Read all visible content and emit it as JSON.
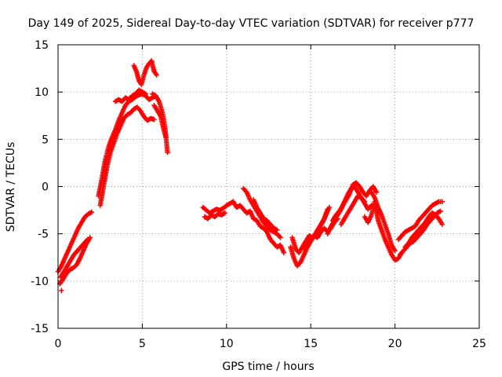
{
  "chart_data": {
    "type": "scatter",
    "title": "Day 149 of 2025, Sidereal Day-to-day VTEC variation (SDTVAR) for receiver p777",
    "xlabel": "GPS time / hours",
    "ylabel": "SDTVAR / TECUs",
    "xlim": [
      0,
      25
    ],
    "ylim": [
      -15,
      15
    ],
    "xticks": [
      "0",
      "5",
      "10",
      "15",
      "20",
      "25"
    ],
    "yticks": [
      "15",
      "10",
      "5",
      "0",
      "-5",
      "-10",
      "-15"
    ],
    "grid": true,
    "marker": "plus",
    "series_color": "#ff0000",
    "series": [
      {
        "segments": [
          {
            "x": [
              0.0,
              0.2,
              0.4,
              0.6,
              0.8,
              1.0,
              1.2,
              1.4,
              1.6,
              1.8,
              2.0
            ],
            "y": [
              -9.0,
              -8.4,
              -7.6,
              -6.8,
              -6.0,
              -5.2,
              -4.4,
              -3.8,
              -3.2,
              -2.9,
              -2.7
            ]
          },
          {
            "x": [
              0.1,
              0.3,
              0.5,
              0.7,
              0.9,
              1.1,
              1.3,
              1.5,
              1.7,
              1.9
            ],
            "y": [
              -10.3,
              -9.8,
              -9.2,
              -8.8,
              -8.6,
              -8.3,
              -7.6,
              -6.8,
              -6.0,
              -5.4
            ]
          },
          {
            "x": [
              0.15,
              0.35,
              0.55,
              0.75,
              0.95,
              1.15,
              1.35,
              1.55,
              1.75
            ],
            "y": [
              -9.6,
              -9.0,
              -8.4,
              -7.8,
              -7.2,
              -6.8,
              -6.4,
              -6.0,
              -5.6
            ]
          },
          {
            "x": [
              2.4,
              2.6,
              2.8,
              3.0,
              3.2,
              3.4,
              3.6,
              3.8,
              4.0,
              4.2,
              4.4,
              4.6,
              4.8,
              5.0,
              5.2,
              5.4,
              5.6,
              5.8
            ],
            "y": [
              -1.0,
              0.8,
              2.8,
              4.2,
              5.2,
              6.0,
              7.0,
              7.8,
              8.6,
              9.0,
              9.2,
              9.5,
              9.7,
              9.8,
              9.6,
              9.2,
              9.4,
              9.6
            ]
          },
          {
            "x": [
              2.5,
              2.7,
              2.9,
              3.1,
              3.3,
              3.5,
              3.7,
              3.9,
              4.1,
              4.3,
              4.5,
              4.7,
              4.9,
              5.1,
              5.3,
              5.5,
              5.7
            ],
            "y": [
              -2.0,
              0.0,
              2.0,
              3.6,
              4.6,
              5.6,
              6.4,
              7.2,
              7.6,
              7.8,
              8.2,
              8.4,
              8.0,
              7.4,
              7.0,
              7.2,
              7.1
            ]
          },
          {
            "x": [
              3.4,
              3.6,
              3.8,
              4.0,
              4.2,
              4.4,
              4.6,
              4.8,
              5.0,
              5.2
            ],
            "y": [
              9.0,
              9.2,
              9.0,
              9.4,
              9.2,
              9.6,
              9.8,
              10.2,
              10.0,
              9.8
            ]
          },
          {
            "x": [
              4.5,
              4.65,
              4.8,
              4.95,
              5.1,
              5.25,
              5.4,
              5.55,
              5.7,
              5.85
            ],
            "y": [
              12.8,
              12.2,
              11.2,
              10.8,
              11.8,
              12.6,
              13.0,
              13.3,
              12.2,
              11.8
            ]
          },
          {
            "x": [
              5.6,
              5.8,
              6.0,
              6.2,
              6.35,
              6.5
            ],
            "y": [
              9.8,
              9.6,
              9.0,
              7.8,
              6.2,
              3.6
            ]
          },
          {
            "x": [
              5.7,
              5.9,
              6.1,
              6.25,
              6.4
            ],
            "y": [
              8.6,
              8.0,
              7.4,
              6.2,
              5.2
            ]
          },
          {
            "x": [
              0.2
            ],
            "y": [
              -11.0
            ]
          },
          {
            "x": [
              8.6,
              8.8,
              9.0,
              9.2,
              9.4,
              9.6,
              9.8,
              10.0,
              10.2,
              10.4
            ],
            "y": [
              -2.2,
              -2.5,
              -2.8,
              -2.6,
              -2.4,
              -2.5,
              -2.3,
              -2.0,
              -1.8,
              -1.6
            ]
          },
          {
            "x": [
              8.7,
              8.9,
              9.1,
              9.3,
              9.5,
              9.7,
              9.9
            ],
            "y": [
              -3.2,
              -3.4,
              -3.0,
              -3.2,
              -2.9,
              -3.0,
              -2.8
            ]
          },
          {
            "x": [
              10.4,
              10.6,
              10.8,
              11.0,
              11.2,
              11.4,
              11.6,
              11.8,
              12.0,
              12.2,
              12.4,
              12.6,
              12.8,
              13.0,
              13.2,
              13.4
            ],
            "y": [
              -1.6,
              -2.2,
              -2.0,
              -2.4,
              -2.8,
              -2.6,
              -3.4,
              -3.6,
              -4.2,
              -4.4,
              -4.8,
              -5.6,
              -6.0,
              -6.4,
              -6.2,
              -7.0
            ]
          },
          {
            "x": [
              11.0,
              11.2,
              11.4,
              11.6,
              11.8,
              12.0,
              12.2,
              12.4,
              12.6,
              12.8,
              13.0,
              13.2
            ],
            "y": [
              -0.2,
              -0.6,
              -1.4,
              -2.0,
              -2.6,
              -3.2,
              -3.8,
              -4.2,
              -4.6,
              -4.8,
              -5.0,
              -5.4
            ]
          },
          {
            "x": [
              11.6,
              11.8,
              12.0,
              12.2,
              12.4,
              12.6,
              12.8,
              13.0
            ],
            "y": [
              -1.4,
              -2.2,
              -2.8,
              -3.4,
              -3.6,
              -4.0,
              -4.4,
              -4.6
            ]
          },
          {
            "x": [
              13.8,
              14.0,
              14.2,
              14.4,
              14.6,
              14.8,
              15.0,
              15.2,
              15.4,
              15.6,
              15.8,
              16.0
            ],
            "y": [
              -6.4,
              -7.6,
              -8.4,
              -8.0,
              -7.2,
              -6.4,
              -5.8,
              -5.2,
              -4.6,
              -4.0,
              -3.4,
              -2.4
            ]
          },
          {
            "x": [
              13.9,
              14.1,
              14.3,
              14.5,
              14.7,
              14.9,
              15.1,
              15.3,
              15.5,
              15.7,
              15.9,
              16.1
            ],
            "y": [
              -5.4,
              -6.6,
              -7.0,
              -6.4,
              -5.8,
              -5.2,
              -5.4,
              -5.0,
              -4.4,
              -3.8,
              -3.0,
              -2.2
            ]
          },
          {
            "x": [
              14.6,
              14.8,
              15.0,
              15.2,
              15.4,
              15.6,
              15.8,
              16.0,
              16.2,
              16.4,
              16.6
            ],
            "y": [
              -6.6,
              -6.2,
              -5.6,
              -5.2,
              -5.4,
              -4.8,
              -4.4,
              -4.8,
              -4.4,
              -3.8,
              -3.4
            ]
          },
          {
            "x": [
              16.0,
              16.2,
              16.4,
              16.6,
              16.8,
              17.0,
              17.2,
              17.4,
              17.6,
              17.8,
              18.0,
              18.2,
              18.4,
              18.6
            ],
            "y": [
              -5.0,
              -4.2,
              -3.6,
              -3.0,
              -2.4,
              -1.6,
              -0.8,
              -0.2,
              0.0,
              -0.6,
              -1.2,
              -1.8,
              -2.4,
              -2.0
            ]
          },
          {
            "x": [
              16.3,
              16.5,
              16.7,
              16.9,
              17.1,
              17.3,
              17.5,
              17.7,
              17.9,
              18.1,
              18.3,
              18.5,
              18.7,
              18.9
            ],
            "y": [
              -3.6,
              -3.0,
              -2.6,
              -2.0,
              -1.4,
              -0.8,
              0.2,
              0.4,
              0.0,
              -0.6,
              -1.0,
              -0.4,
              0.0,
              -0.6
            ]
          },
          {
            "x": [
              16.8,
              17.0,
              17.2,
              17.4,
              17.6,
              17.8,
              18.0,
              18.2
            ],
            "y": [
              -4.0,
              -3.4,
              -2.8,
              -2.2,
              -1.6,
              -1.0,
              -1.2,
              -1.6
            ]
          },
          {
            "x": [
              18.2,
              18.4,
              18.6,
              18.8,
              19.0,
              19.2,
              19.4,
              19.6,
              19.8,
              20.0,
              20.2,
              20.4
            ],
            "y": [
              -3.2,
              -3.8,
              -3.0,
              -1.6,
              -3.6,
              -4.6,
              -5.6,
              -6.4,
              -7.2,
              -7.8,
              -7.6,
              -7.0
            ]
          },
          {
            "x": [
              18.6,
              18.8,
              19.0,
              19.2,
              19.4,
              19.6,
              19.8,
              20.0
            ],
            "y": [
              -0.6,
              -1.2,
              -2.2,
              -3.0,
              -4.0,
              -5.0,
              -6.2,
              -6.8
            ]
          },
          {
            "x": [
              20.2,
              20.4,
              20.6,
              20.8,
              21.0,
              21.2,
              21.4,
              21.6,
              21.8,
              22.0,
              22.2,
              22.4,
              22.6,
              22.8
            ],
            "y": [
              -5.6,
              -5.2,
              -4.8,
              -4.6,
              -4.4,
              -4.2,
              -3.6,
              -3.2,
              -2.8,
              -2.4,
              -2.0,
              -1.8,
              -1.6,
              -1.6
            ]
          },
          {
            "x": [
              20.3,
              20.5,
              20.7,
              20.9,
              21.1,
              21.3,
              21.5,
              21.7,
              21.9,
              22.1,
              22.3,
              22.5,
              22.7
            ],
            "y": [
              -7.2,
              -6.8,
              -6.4,
              -6.0,
              -5.8,
              -5.4,
              -5.0,
              -4.6,
              -4.0,
              -3.6,
              -3.2,
              -2.8,
              -2.6
            ]
          },
          {
            "x": [
              20.6,
              20.8,
              21.0,
              21.2,
              21.4,
              21.6,
              21.8,
              22.0,
              22.2,
              22.4,
              22.6,
              22.8
            ],
            "y": [
              -6.4,
              -6.0,
              -5.4,
              -5.0,
              -4.6,
              -4.2,
              -3.8,
              -3.2,
              -2.8,
              -3.0,
              -3.4,
              -4.0
            ]
          }
        ]
      }
    ]
  }
}
